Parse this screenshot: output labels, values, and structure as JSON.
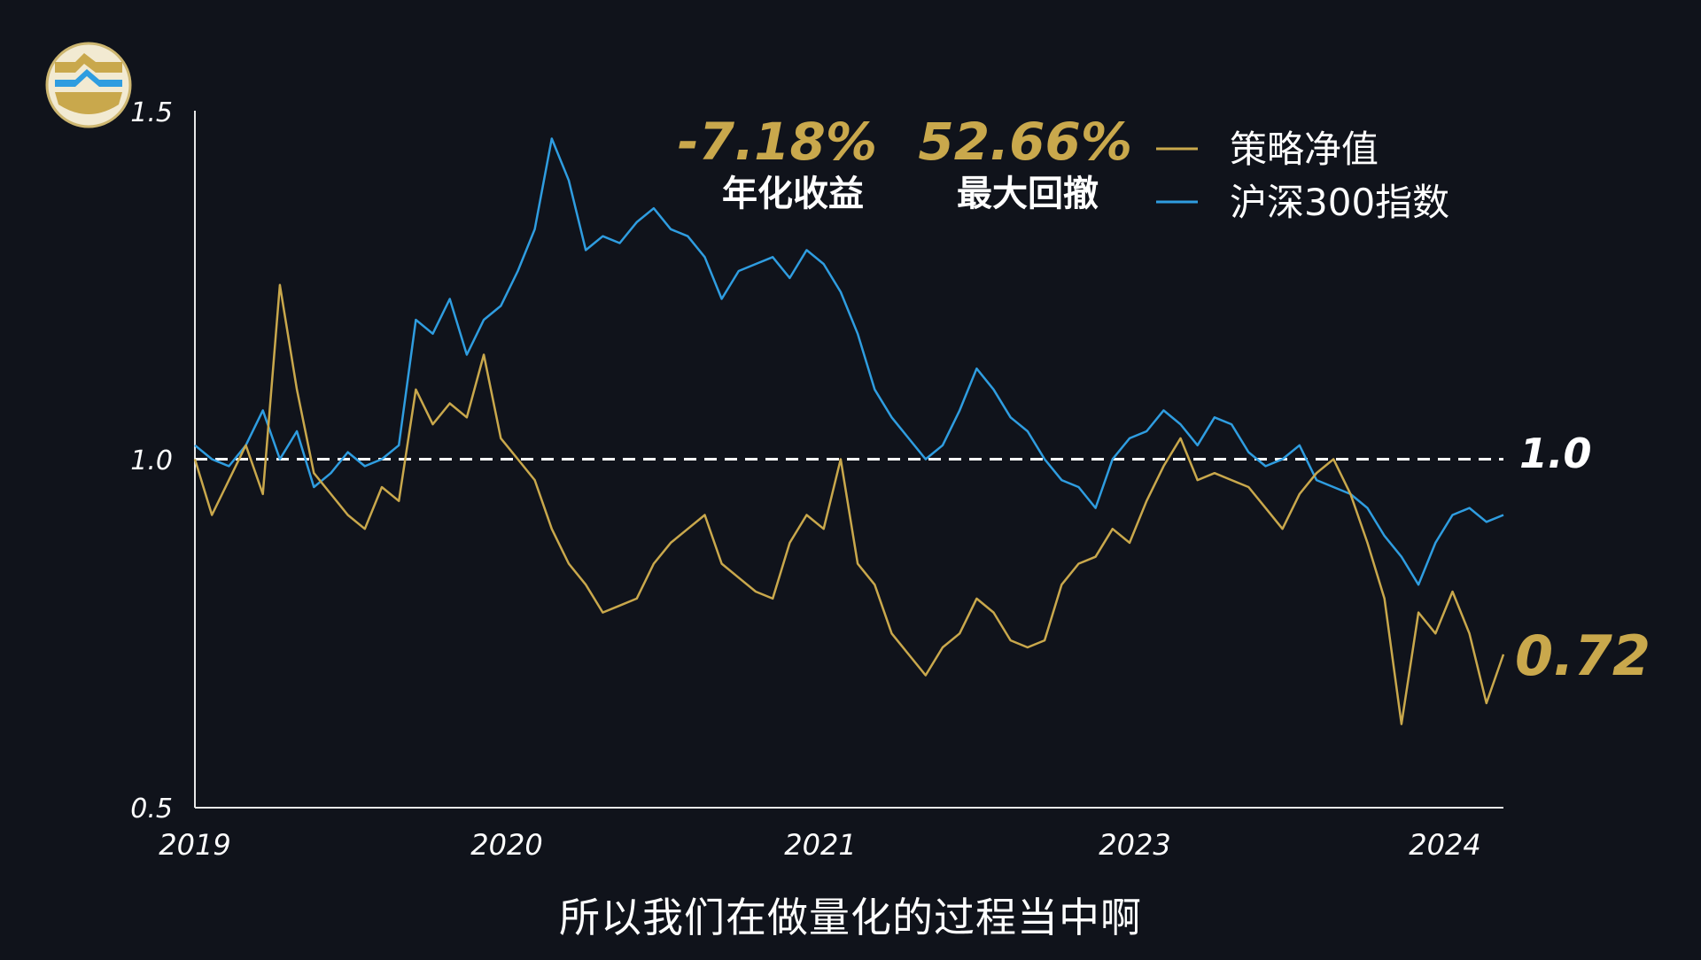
{
  "chart_data": {
    "type": "line",
    "x_ticks": [
      "2019",
      "2020",
      "2021",
      "2023",
      "2024"
    ],
    "y_ticks": [
      "1.5",
      "1.0",
      "0.5"
    ],
    "ylim": [
      0.5,
      1.5
    ],
    "reference_line": {
      "value": 1.0,
      "label": "1.0"
    },
    "end_label": "0.72",
    "stats": [
      {
        "value": "-7.18%",
        "label": "年化收益"
      },
      {
        "value": "52.66%",
        "label": "最大回撤"
      }
    ],
    "legend_position": "top-right",
    "series": [
      {
        "name": "策略净值",
        "color": "#c9a84c",
        "values": [
          1.0,
          0.92,
          0.97,
          1.02,
          0.95,
          1.25,
          1.1,
          0.98,
          0.95,
          0.92,
          0.9,
          0.96,
          0.94,
          1.1,
          1.05,
          1.08,
          1.06,
          1.15,
          1.03,
          1.0,
          0.97,
          0.9,
          0.85,
          0.82,
          0.78,
          0.79,
          0.8,
          0.85,
          0.88,
          0.9,
          0.92,
          0.85,
          0.83,
          0.81,
          0.8,
          0.88,
          0.92,
          0.9,
          1.0,
          0.85,
          0.82,
          0.75,
          0.72,
          0.69,
          0.73,
          0.75,
          0.8,
          0.78,
          0.74,
          0.73,
          0.74,
          0.82,
          0.85,
          0.86,
          0.9,
          0.88,
          0.94,
          0.99,
          1.03,
          0.97,
          0.98,
          0.97,
          0.96,
          0.93,
          0.9,
          0.95,
          0.98,
          1.0,
          0.95,
          0.88,
          0.8,
          0.62,
          0.78,
          0.75,
          0.81,
          0.75,
          0.65,
          0.72
        ]
      },
      {
        "name": "沪深300指数",
        "color": "#2f9de0",
        "values": [
          1.02,
          1.0,
          0.99,
          1.02,
          1.07,
          1.0,
          1.04,
          0.96,
          0.98,
          1.01,
          0.99,
          1.0,
          1.02,
          1.2,
          1.18,
          1.23,
          1.15,
          1.2,
          1.22,
          1.27,
          1.33,
          1.46,
          1.4,
          1.3,
          1.32,
          1.31,
          1.34,
          1.36,
          1.33,
          1.32,
          1.29,
          1.23,
          1.27,
          1.28,
          1.29,
          1.26,
          1.3,
          1.28,
          1.24,
          1.18,
          1.1,
          1.06,
          1.03,
          1.0,
          1.02,
          1.07,
          1.13,
          1.1,
          1.06,
          1.04,
          1.0,
          0.97,
          0.96,
          0.93,
          1.0,
          1.03,
          1.04,
          1.07,
          1.05,
          1.02,
          1.06,
          1.05,
          1.01,
          0.99,
          1.0,
          1.02,
          0.97,
          0.96,
          0.95,
          0.93,
          0.89,
          0.86,
          0.82,
          0.88,
          0.92,
          0.93,
          0.91,
          0.92
        ]
      }
    ]
  },
  "subtitle": "所以我们在做量化的过程当中啊"
}
